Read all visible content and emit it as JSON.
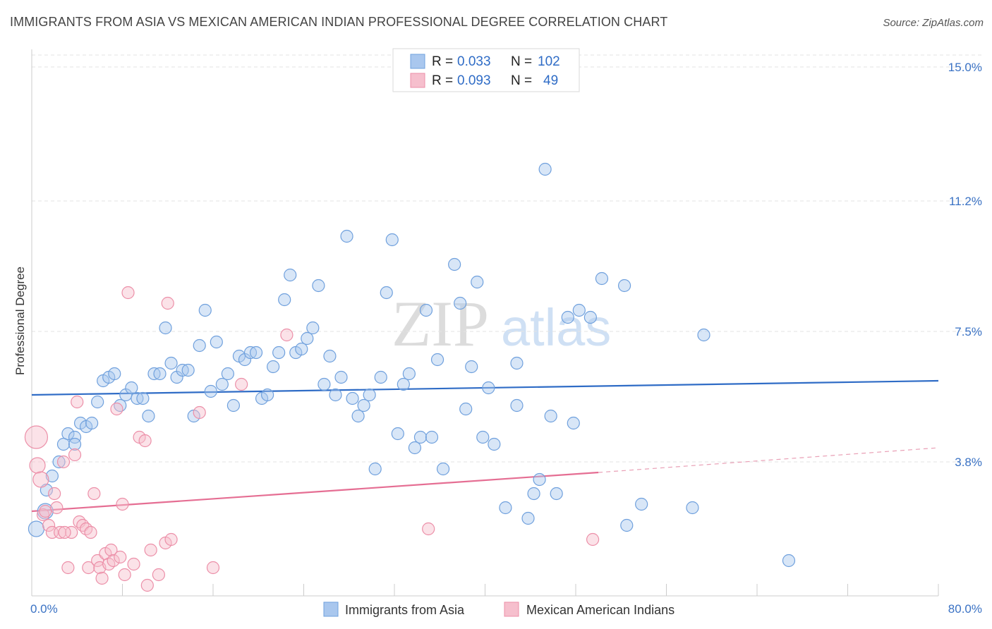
{
  "title": "IMMIGRANTS FROM ASIA VS MEXICAN AMERICAN INDIAN PROFESSIONAL DEGREE CORRELATION CHART",
  "source": "Source: ZipAtlas.com",
  "watermark": {
    "zip": "ZIP",
    "atlas": "atlas"
  },
  "legend": {
    "rows": [
      {
        "r_label": "R =",
        "r_value": "0.033",
        "n_label": "N =",
        "n_value": "102"
      },
      {
        "r_label": "R =",
        "r_value": "0.093",
        "n_label": "N =",
        "n_value": "49"
      }
    ]
  },
  "chart_data": {
    "type": "scatter",
    "title": "IMMIGRANTS FROM ASIA VS MEXICAN AMERICAN INDIAN PROFESSIONAL DEGREE CORRELATION CHART",
    "xlabel": "",
    "ylabel": "Professional Degree",
    "xlim": [
      0,
      80
    ],
    "ylim": [
      0,
      15.5
    ],
    "x_tick_labels": [
      "0.0%",
      "80.0%"
    ],
    "y_ticks": [
      3.8,
      7.5,
      11.2,
      15.0
    ],
    "y_tick_labels": [
      "3.8%",
      "7.5%",
      "11.2%",
      "15.0%"
    ],
    "grid": true,
    "series": [
      {
        "name": "Immigrants from Asia",
        "color": "#6fa0dd",
        "fill": "#a9c7ee",
        "R": 0.033,
        "N": 102,
        "trend": {
          "x0": 0,
          "y0": 5.7,
          "x1": 80,
          "y1": 6.1
        },
        "points": [
          [
            0.4,
            1.9
          ],
          [
            1.2,
            2.4
          ],
          [
            1.3,
            3.0
          ],
          [
            1.8,
            3.4
          ],
          [
            2.4,
            3.8
          ],
          [
            2.8,
            4.3
          ],
          [
            3.2,
            4.6
          ],
          [
            3.8,
            4.5
          ],
          [
            4.3,
            4.9
          ],
          [
            4.8,
            4.8
          ],
          [
            5.3,
            4.9
          ],
          [
            5.8,
            5.5
          ],
          [
            6.3,
            6.1
          ],
          [
            6.8,
            6.2
          ],
          [
            7.3,
            6.3
          ],
          [
            7.8,
            5.4
          ],
          [
            8.3,
            5.7
          ],
          [
            8.8,
            5.9
          ],
          [
            9.3,
            5.6
          ],
          [
            9.8,
            5.6
          ],
          [
            10.3,
            5.1
          ],
          [
            10.8,
            6.3
          ],
          [
            11.3,
            6.3
          ],
          [
            11.8,
            7.6
          ],
          [
            12.3,
            6.6
          ],
          [
            12.8,
            6.2
          ],
          [
            13.3,
            6.4
          ],
          [
            13.8,
            6.4
          ],
          [
            14.3,
            5.1
          ],
          [
            14.8,
            7.1
          ],
          [
            15.3,
            8.1
          ],
          [
            15.8,
            5.8
          ],
          [
            16.3,
            7.2
          ],
          [
            16.8,
            6.0
          ],
          [
            17.3,
            6.3
          ],
          [
            17.8,
            5.4
          ],
          [
            18.3,
            6.8
          ],
          [
            18.8,
            6.7
          ],
          [
            19.3,
            6.9
          ],
          [
            19.8,
            6.9
          ],
          [
            20.3,
            5.6
          ],
          [
            20.8,
            5.7
          ],
          [
            21.3,
            6.5
          ],
          [
            21.8,
            6.9
          ],
          [
            22.3,
            8.4
          ],
          [
            22.8,
            9.1
          ],
          [
            23.3,
            6.9
          ],
          [
            23.8,
            7.0
          ],
          [
            24.3,
            7.3
          ],
          [
            24.8,
            7.6
          ],
          [
            25.3,
            8.8
          ],
          [
            25.8,
            6.0
          ],
          [
            26.3,
            6.8
          ],
          [
            26.8,
            5.7
          ],
          [
            27.3,
            6.2
          ],
          [
            27.8,
            10.2
          ],
          [
            28.3,
            5.6
          ],
          [
            28.8,
            5.1
          ],
          [
            29.3,
            5.4
          ],
          [
            29.8,
            5.7
          ],
          [
            30.3,
            3.6
          ],
          [
            30.8,
            6.2
          ],
          [
            31.3,
            8.6
          ],
          [
            31.8,
            10.1
          ],
          [
            32.3,
            4.6
          ],
          [
            32.8,
            6.0
          ],
          [
            33.3,
            6.3
          ],
          [
            33.8,
            4.2
          ],
          [
            34.3,
            4.5
          ],
          [
            34.8,
            8.1
          ],
          [
            35.3,
            4.5
          ],
          [
            35.8,
            6.7
          ],
          [
            36.3,
            3.6
          ],
          [
            37.3,
            9.4
          ],
          [
            37.8,
            8.3
          ],
          [
            38.3,
            5.3
          ],
          [
            38.8,
            6.5
          ],
          [
            39.3,
            8.9
          ],
          [
            39.8,
            4.5
          ],
          [
            40.3,
            5.9
          ],
          [
            40.8,
            4.3
          ],
          [
            41.8,
            2.5
          ],
          [
            42.8,
            6.6
          ],
          [
            43.8,
            2.2
          ],
          [
            42.8,
            5.4
          ],
          [
            44.3,
            2.9
          ],
          [
            44.8,
            3.3
          ],
          [
            45.3,
            12.1
          ],
          [
            45.8,
            5.1
          ],
          [
            46.3,
            2.9
          ],
          [
            47.3,
            7.9
          ],
          [
            47.8,
            4.9
          ],
          [
            48.3,
            8.1
          ],
          [
            49.3,
            7.9
          ],
          [
            50.3,
            9.0
          ],
          [
            52.3,
            8.8
          ],
          [
            52.5,
            2.0
          ],
          [
            53.8,
            2.6
          ],
          [
            58.3,
            2.5
          ],
          [
            59.3,
            7.4
          ],
          [
            66.8,
            1.0
          ],
          [
            3.8,
            4.3
          ]
        ]
      },
      {
        "name": "Mexican American Indians",
        "color": "#ec8fa8",
        "fill": "#f6bfcd",
        "R": 0.093,
        "N": 49,
        "trend": {
          "x0": 0,
          "y0": 2.4,
          "x1": 50,
          "y1": 3.5
        },
        "trend_dashed": {
          "x0": 50,
          "y0": 3.5,
          "x1": 80,
          "y1": 4.2
        },
        "points": [
          [
            0.4,
            4.5
          ],
          [
            0.5,
            3.7
          ],
          [
            0.8,
            3.3
          ],
          [
            1.0,
            2.3
          ],
          [
            1.2,
            2.4
          ],
          [
            1.5,
            2.0
          ],
          [
            1.8,
            1.8
          ],
          [
            2.0,
            2.9
          ],
          [
            2.2,
            2.5
          ],
          [
            2.5,
            1.8
          ],
          [
            2.8,
            3.8
          ],
          [
            3.2,
            0.8
          ],
          [
            3.5,
            1.8
          ],
          [
            3.8,
            4.0
          ],
          [
            4.0,
            5.5
          ],
          [
            4.2,
            2.1
          ],
          [
            4.5,
            2.0
          ],
          [
            4.8,
            1.9
          ],
          [
            5.0,
            0.8
          ],
          [
            5.2,
            1.8
          ],
          [
            5.5,
            2.9
          ],
          [
            5.8,
            1.0
          ],
          [
            6.0,
            0.8
          ],
          [
            6.2,
            0.5
          ],
          [
            6.5,
            1.2
          ],
          [
            6.8,
            0.9
          ],
          [
            7.0,
            1.3
          ],
          [
            7.2,
            1.0
          ],
          [
            7.5,
            5.3
          ],
          [
            7.8,
            1.1
          ],
          [
            8.0,
            2.6
          ],
          [
            8.2,
            0.6
          ],
          [
            8.5,
            8.6
          ],
          [
            9.0,
            0.9
          ],
          [
            9.5,
            4.5
          ],
          [
            10.0,
            4.4
          ],
          [
            10.2,
            0.3
          ],
          [
            10.5,
            1.3
          ],
          [
            11.2,
            0.6
          ],
          [
            11.8,
            1.5
          ],
          [
            12.0,
            8.3
          ],
          [
            12.3,
            1.6
          ],
          [
            14.8,
            5.2
          ],
          [
            16.0,
            0.8
          ],
          [
            18.5,
            6.0
          ],
          [
            22.5,
            7.4
          ],
          [
            35.0,
            1.9
          ],
          [
            49.5,
            1.6
          ],
          [
            2.9,
            1.8
          ]
        ]
      }
    ]
  }
}
